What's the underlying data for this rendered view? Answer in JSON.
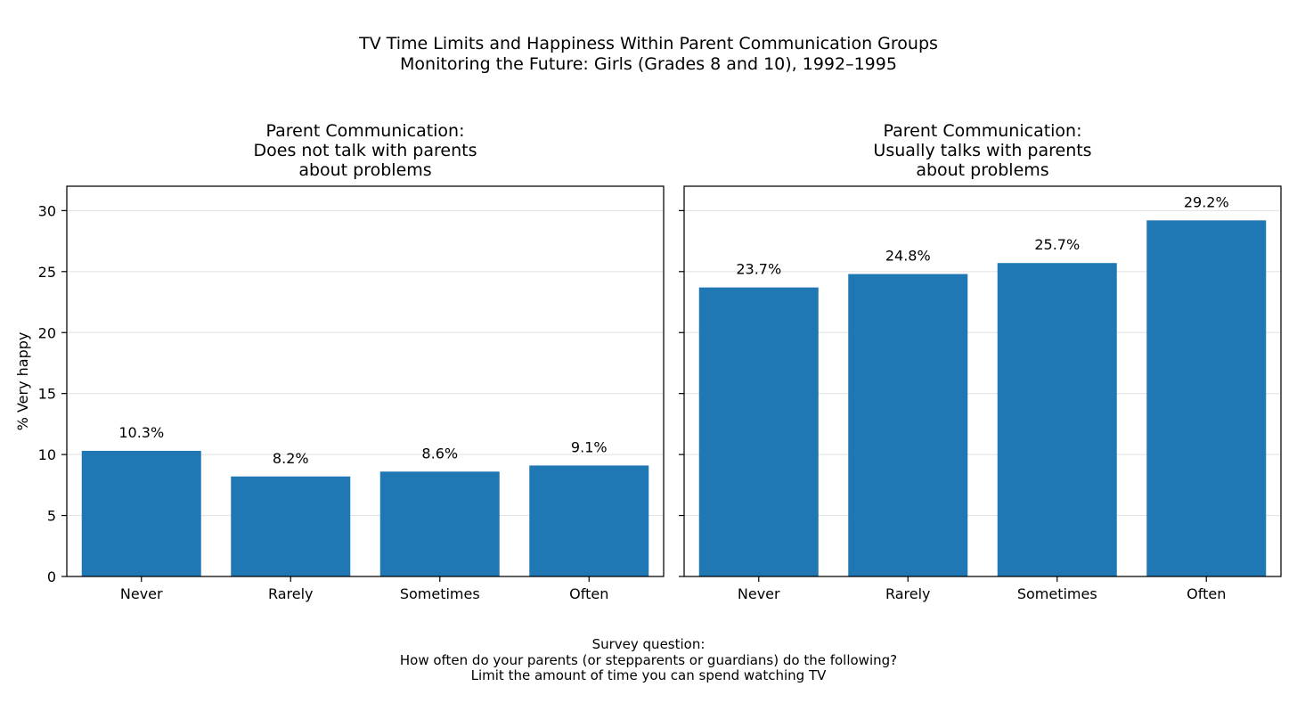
{
  "figure": {
    "title_line1": "TV Time Limits and Happiness Within Parent Communication Groups",
    "title_line2": "Monitoring the Future: Girls (Grades 8 and 10), 1992–1995",
    "caption_line1": "Survey question:",
    "caption_line2": "How often do your parents (or stepparents or guardians) do the following?",
    "caption_line3": "Limit the amount of time you can spend watching TV"
  },
  "colors": {
    "bar": "#1f77b4",
    "grid": "#e0e0e0"
  },
  "chart_data": [
    {
      "type": "bar",
      "title": [
        "Parent Communication:",
        "Does not talk with parents",
        "about problems"
      ],
      "categories": [
        "Never",
        "Rarely",
        "Sometimes",
        "Often"
      ],
      "values": [
        10.3,
        8.2,
        8.6,
        9.1
      ],
      "labels": [
        "10.3%",
        "8.2%",
        "8.6%",
        "9.1%"
      ],
      "ylabel": "% Very happy",
      "xlabel": "",
      "ylim": [
        0,
        32
      ],
      "yticks": [
        0,
        5,
        10,
        15,
        20,
        25,
        30
      ],
      "grid": true
    },
    {
      "type": "bar",
      "title": [
        "Parent Communication:",
        "Usually talks with parents",
        "about problems"
      ],
      "categories": [
        "Never",
        "Rarely",
        "Sometimes",
        "Often"
      ],
      "values": [
        23.7,
        24.8,
        25.7,
        29.2
      ],
      "labels": [
        "23.7%",
        "24.8%",
        "25.7%",
        "29.2%"
      ],
      "ylabel": "",
      "xlabel": "",
      "ylim": [
        0,
        32
      ],
      "yticks": [
        0,
        5,
        10,
        15,
        20,
        25,
        30
      ],
      "grid": true
    }
  ]
}
